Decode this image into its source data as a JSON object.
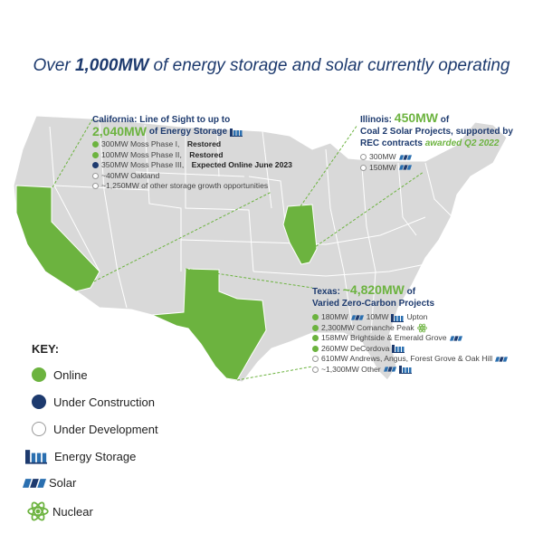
{
  "title": {
    "before": "Over",
    "highlight": "1,000MW",
    "after": "of energy storage and solar currently operating"
  },
  "california": {
    "heading": "California: Line of Sight to up to",
    "amount": "2,040MW",
    "amount_suffix": "of Energy Storage",
    "items": [
      {
        "text": "300MW Moss Phase I,",
        "status": "Restored"
      },
      {
        "text": "100MW Moss Phase II,",
        "status": "Restored"
      },
      {
        "text": "350MW Moss Phase III,",
        "status": "Expected Online June 2023"
      },
      {
        "text": "~40MW Oakland"
      },
      {
        "text": "~1,250MW of other storage growth opportunities"
      }
    ]
  },
  "illinois": {
    "label": "Illinois:",
    "amount": "450MW",
    "amount_suffix": "of",
    "line2": "Coal 2 Solar Projects, supported by",
    "line3": "REC contracts",
    "line3_highlight": "awarded Q2 2022",
    "items": [
      "300MW",
      "150MW"
    ]
  },
  "texas": {
    "label": "Texas:",
    "amount": "~4,820MW",
    "amount_suffix": "of",
    "line2": "Varied Zero-Carbon Projects",
    "items": [
      [
        "180MW",
        "10MW",
        "Upton"
      ],
      [
        "2,300MW Comanche Peak"
      ],
      [
        "158MW Brightside & Emerald Grove"
      ],
      [
        "260MW DeCordova"
      ],
      [
        "610MW Andrews, Angus, Forest Grove & Oak Hill"
      ],
      [
        "~1,300MW Other"
      ]
    ]
  },
  "key": {
    "title": "KEY:",
    "statuses": [
      "Online",
      "Under Construction",
      "Under Development"
    ],
    "icons": [
      "Energy Storage",
      "Solar",
      "Nuclear"
    ]
  }
}
